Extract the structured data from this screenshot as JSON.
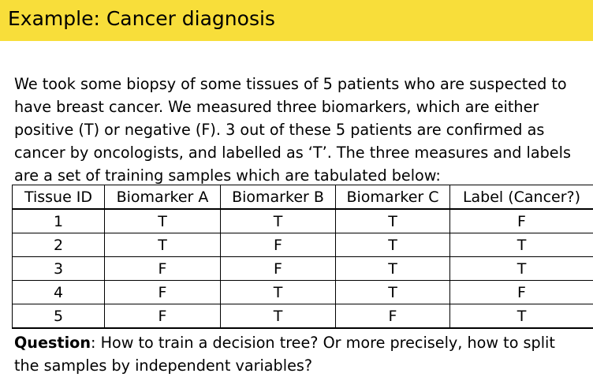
{
  "header": {
    "title": "Example:  Cancer diagnosis"
  },
  "intro": {
    "paragraph": "We took some biopsy of some tissues of 5 patients who are suspected to have breast cancer. We measured three biomarkers, which are either positive (T) or negative (F). 3 out of these 5 patients are confirmed as cancer by oncologists, and labelled as ‘T’. The three measures and labels are a set of training samples which are tabulated below:"
  },
  "table": {
    "headers": [
      "Tissue ID",
      "Biomarker A",
      "Biomarker B",
      "Biomarker C",
      "Label (Cancer?)"
    ],
    "rows": [
      [
        "1",
        "T",
        "T",
        "T",
        "F"
      ],
      [
        "2",
        "T",
        "F",
        "T",
        "T"
      ],
      [
        "3",
        "F",
        "F",
        "T",
        "T"
      ],
      [
        "4",
        "F",
        "T",
        "T",
        "F"
      ],
      [
        "5",
        "F",
        "T",
        "F",
        "T"
      ]
    ]
  },
  "question": {
    "label": "Question",
    "text": ": How to train a decision tree? Or more precisely, how to split the samples by independent variables?"
  }
}
